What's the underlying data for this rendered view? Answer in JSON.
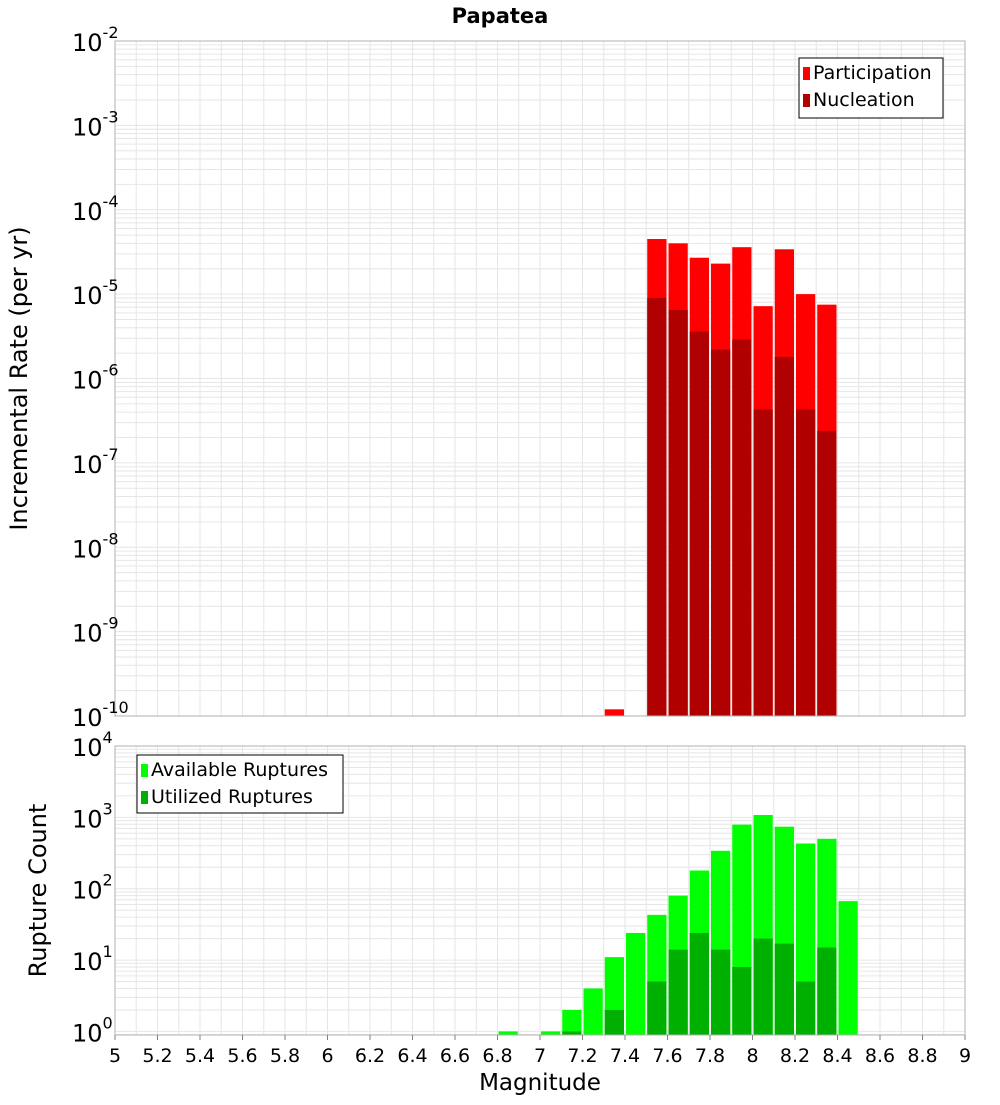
{
  "title": "Papatea",
  "colors": {
    "participation": "#ff0000",
    "nucleation": "#b10000",
    "available": "#00ff00",
    "utilized": "#00b000",
    "grid": "#e6e6e6",
    "axis_frame": "#b0b0b0"
  },
  "chart_data": [
    {
      "type": "bar",
      "title": "Papatea",
      "xlabel": "",
      "ylabel": "Incremental Rate (per yr)",
      "xlim": [
        5,
        9
      ],
      "yscale": "log",
      "ylim_exp": [
        -10,
        -2
      ],
      "ytick_labels": [
        {
          "base": "10",
          "exp": "-2"
        },
        {
          "base": "10",
          "exp": "-3"
        },
        {
          "base": "10",
          "exp": "-4"
        },
        {
          "base": "10",
          "exp": "-5"
        },
        {
          "base": "10",
          "exp": "-6"
        },
        {
          "base": "10",
          "exp": "-7"
        },
        {
          "base": "10",
          "exp": "-8"
        },
        {
          "base": "10",
          "exp": "-9"
        },
        {
          "base": "10",
          "exp": "-10"
        }
      ],
      "legend": {
        "location": "top-right",
        "entries": [
          "Participation",
          "Nucleation"
        ]
      },
      "series": [
        {
          "name": "Participation",
          "x": [
            7.35,
            7.55,
            7.65,
            7.75,
            7.85,
            7.95,
            8.05,
            8.15,
            8.25,
            8.35
          ],
          "values": [
            1.2e-10,
            4.5e-05,
            4e-05,
            2.7e-05,
            2.3e-05,
            3.6e-05,
            7.2e-06,
            3.4e-05,
            1e-05,
            7.5e-06
          ]
        },
        {
          "name": "Nucleation",
          "x": [
            7.55,
            7.65,
            7.75,
            7.85,
            7.95,
            8.05,
            8.15,
            8.25,
            8.35
          ],
          "values": [
            9e-06,
            6.5e-06,
            3.6e-06,
            2.2e-06,
            2.9e-06,
            4.3e-07,
            1.8e-06,
            4.3e-07,
            2.4e-07
          ]
        }
      ]
    },
    {
      "type": "bar",
      "title": "",
      "xlabel": "Magnitude",
      "ylabel": "Rupture Count",
      "xlim": [
        5,
        9
      ],
      "yscale": "log",
      "ylim_exp": [
        -0.05,
        4
      ],
      "ytick_labels": [
        {
          "base": "10",
          "exp": "4"
        },
        {
          "base": "10",
          "exp": "3"
        },
        {
          "base": "10",
          "exp": "2"
        },
        {
          "base": "10",
          "exp": "1"
        },
        {
          "base": "10",
          "exp": "0"
        }
      ],
      "xtick_labels": [
        "5",
        "5.2",
        "5.4",
        "5.6",
        "5.8",
        "6",
        "6.2",
        "6.4",
        "6.6",
        "6.8",
        "7",
        "7.2",
        "7.4",
        "7.6",
        "7.8",
        "8",
        "8.2",
        "8.4",
        "8.6",
        "8.8",
        "9"
      ],
      "legend": {
        "location": "top-left",
        "entries": [
          "Available Ruptures",
          "Utilized Ruptures"
        ]
      },
      "series": [
        {
          "name": "Available Ruptures",
          "x": [
            6.85,
            7.05,
            7.15,
            7.25,
            7.35,
            7.45,
            7.55,
            7.65,
            7.75,
            7.85,
            7.95,
            8.05,
            8.15,
            8.25,
            8.35,
            8.45
          ],
          "values": [
            1,
            1,
            2,
            4,
            11,
            24,
            43,
            80,
            180,
            340,
            790,
            1080,
            740,
            430,
            500,
            67
          ]
        },
        {
          "name": "Utilized Ruptures",
          "x": [
            7.15,
            7.35,
            7.55,
            7.65,
            7.75,
            7.85,
            7.95,
            8.05,
            8.15,
            8.25,
            8.35
          ],
          "values": [
            1,
            2,
            5,
            14,
            24,
            14,
            8,
            20,
            17,
            5,
            15
          ]
        }
      ]
    }
  ]
}
